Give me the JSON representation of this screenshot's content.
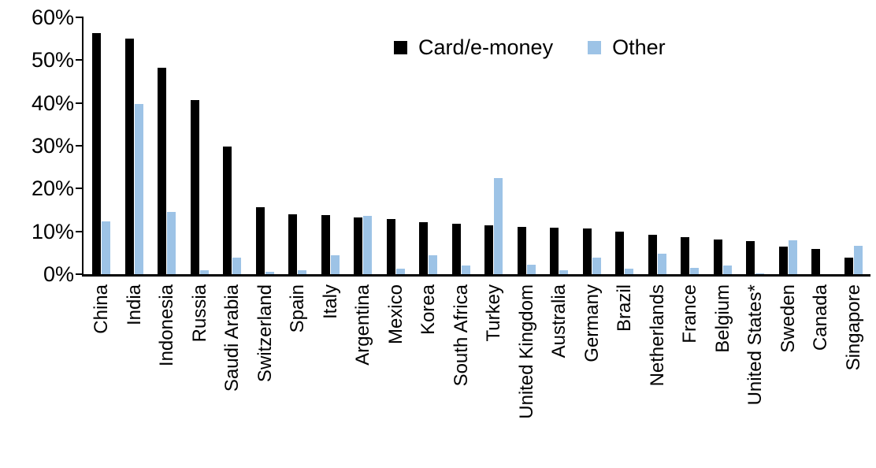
{
  "chart_data": {
    "type": "bar",
    "title": "",
    "legend_position": "top-center",
    "grid": false,
    "axis_color": "#000000",
    "background_color": "#ffffff",
    "categories": [
      "China",
      "India",
      "Indonesia",
      "Russia",
      "Saudi Arabia",
      "Switzerland",
      "Spain",
      "Italy",
      "Argentina",
      "Mexico",
      "Korea",
      "South Africa",
      "Turkey",
      "United Kingdom",
      "Australia",
      "Germany",
      "Brazil",
      "Netherlands",
      "France",
      "Belgium",
      "United States*",
      "Sweden",
      "Canada",
      "Singapore"
    ],
    "series": [
      {
        "name": "Card/e-money",
        "color": "#000000",
        "values": [
          56.3,
          55.1,
          48.3,
          40.6,
          29.8,
          15.6,
          14.0,
          13.8,
          13.3,
          12.9,
          12.2,
          11.7,
          11.5,
          11.1,
          10.8,
          10.6,
          10.0,
          9.2,
          8.6,
          8.1,
          7.8,
          6.5,
          5.9,
          3.9
        ]
      },
      {
        "name": "Other",
        "color": "#9DC3E6",
        "values": [
          12.4,
          39.7,
          14.6,
          0.9,
          3.8,
          0.6,
          0.9,
          4.4,
          13.7,
          1.2,
          4.4,
          2.1,
          22.5,
          2.3,
          1.0,
          3.9,
          1.2,
          4.8,
          1.5,
          2.0,
          0.2,
          8.0,
          0.0,
          6.6
        ]
      }
    ],
    "xlabel": "",
    "ylabel": "",
    "ylim": [
      0,
      60
    ],
    "ytick_step": 10,
    "ytick_labels": [
      "0%",
      "10%",
      "20%",
      "30%",
      "40%",
      "50%",
      "60%"
    ]
  }
}
